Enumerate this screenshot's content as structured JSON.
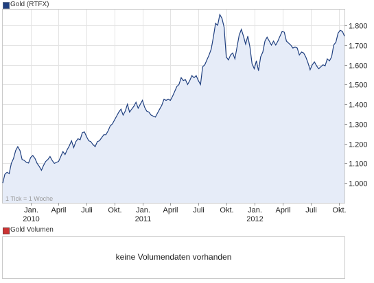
{
  "legend_price": {
    "label": "Gold (RTFX)",
    "color": "#1f3f7f"
  },
  "legend_volume": {
    "label": "Gold Volumen",
    "color": "#cc3333"
  },
  "volume_message": "keine Volumendaten vorhanden",
  "tick_note": "1 Tick = 1 Woche",
  "chart_data": {
    "type": "area",
    "title": "Gold (RTFX)",
    "xlabel": "",
    "ylabel": "",
    "ylim": [
      900,
      1880
    ],
    "yticks": [
      1000,
      1100,
      1200,
      1300,
      1400,
      1500,
      1600,
      1700,
      1800
    ],
    "ytick_labels": [
      "1.000",
      "1.100",
      "1.200",
      "1.300",
      "1.400",
      "1.500",
      "1.600",
      "1.700",
      "1.800"
    ],
    "xlim": [
      "2009-10-02",
      "2012-10-19"
    ],
    "xticks": [
      {
        "date": "2010-01-01",
        "label": "Jan.",
        "sub": "2010"
      },
      {
        "date": "2010-04-01",
        "label": "April",
        "sub": ""
      },
      {
        "date": "2010-07-01",
        "label": "Juli",
        "sub": ""
      },
      {
        "date": "2010-10-01",
        "label": "Okt.",
        "sub": ""
      },
      {
        "date": "2011-01-01",
        "label": "Jan.",
        "sub": "2011"
      },
      {
        "date": "2011-04-01",
        "label": "April",
        "sub": ""
      },
      {
        "date": "2011-07-01",
        "label": "Juli",
        "sub": ""
      },
      {
        "date": "2011-10-01",
        "label": "Okt.",
        "sub": ""
      },
      {
        "date": "2012-01-01",
        "label": "Jan.",
        "sub": "2012"
      },
      {
        "date": "2012-04-01",
        "label": "April",
        "sub": ""
      },
      {
        "date": "2012-07-01",
        "label": "Juli",
        "sub": ""
      },
      {
        "date": "2012-10-01",
        "label": "Okt.",
        "sub": ""
      }
    ],
    "grid": true,
    "series": [
      {
        "name": "Gold (RTFX)",
        "color": "#1f3f7f",
        "fill": "#e6ecf8",
        "points": [
          [
            "2009-10-02",
            1000
          ],
          [
            "2009-10-09",
            1045
          ],
          [
            "2009-10-16",
            1055
          ],
          [
            "2009-10-23",
            1048
          ],
          [
            "2009-10-30",
            1100
          ],
          [
            "2009-11-06",
            1125
          ],
          [
            "2009-11-13",
            1165
          ],
          [
            "2009-11-20",
            1185
          ],
          [
            "2009-11-27",
            1165
          ],
          [
            "2009-12-04",
            1120
          ],
          [
            "2009-12-11",
            1115
          ],
          [
            "2009-12-18",
            1105
          ],
          [
            "2009-12-25",
            1102
          ],
          [
            "2010-01-01",
            1130
          ],
          [
            "2010-01-08",
            1140
          ],
          [
            "2010-01-15",
            1125
          ],
          [
            "2010-01-22",
            1100
          ],
          [
            "2010-01-29",
            1085
          ],
          [
            "2010-02-05",
            1065
          ],
          [
            "2010-02-12",
            1090
          ],
          [
            "2010-02-19",
            1110
          ],
          [
            "2010-02-26",
            1120
          ],
          [
            "2010-03-05",
            1135
          ],
          [
            "2010-03-12",
            1115
          ],
          [
            "2010-03-19",
            1100
          ],
          [
            "2010-03-26",
            1105
          ],
          [
            "2010-04-02",
            1110
          ],
          [
            "2010-04-09",
            1135
          ],
          [
            "2010-04-16",
            1160
          ],
          [
            "2010-04-23",
            1145
          ],
          [
            "2010-04-30",
            1170
          ],
          [
            "2010-05-07",
            1190
          ],
          [
            "2010-05-14",
            1215
          ],
          [
            "2010-05-21",
            1180
          ],
          [
            "2010-05-28",
            1210
          ],
          [
            "2010-06-04",
            1225
          ],
          [
            "2010-06-11",
            1220
          ],
          [
            "2010-06-18",
            1255
          ],
          [
            "2010-06-25",
            1260
          ],
          [
            "2010-07-02",
            1235
          ],
          [
            "2010-07-09",
            1215
          ],
          [
            "2010-07-16",
            1210
          ],
          [
            "2010-07-23",
            1195
          ],
          [
            "2010-07-30",
            1185
          ],
          [
            "2010-08-06",
            1210
          ],
          [
            "2010-08-13",
            1215
          ],
          [
            "2010-08-20",
            1230
          ],
          [
            "2010-08-27",
            1245
          ],
          [
            "2010-09-03",
            1245
          ],
          [
            "2010-09-10",
            1265
          ],
          [
            "2010-09-17",
            1290
          ],
          [
            "2010-09-24",
            1300
          ],
          [
            "2010-10-01",
            1320
          ],
          [
            "2010-10-08",
            1340
          ],
          [
            "2010-10-15",
            1360
          ],
          [
            "2010-10-22",
            1375
          ],
          [
            "2010-10-29",
            1345
          ],
          [
            "2010-11-05",
            1365
          ],
          [
            "2010-11-12",
            1400
          ],
          [
            "2010-11-19",
            1360
          ],
          [
            "2010-11-26",
            1375
          ],
          [
            "2010-12-03",
            1390
          ],
          [
            "2010-12-10",
            1410
          ],
          [
            "2010-12-17",
            1380
          ],
          [
            "2010-12-24",
            1400
          ],
          [
            "2010-12-31",
            1420
          ],
          [
            "2011-01-07",
            1385
          ],
          [
            "2011-01-14",
            1365
          ],
          [
            "2011-01-21",
            1360
          ],
          [
            "2011-01-28",
            1345
          ],
          [
            "2011-02-04",
            1340
          ],
          [
            "2011-02-11",
            1335
          ],
          [
            "2011-02-18",
            1355
          ],
          [
            "2011-02-25",
            1375
          ],
          [
            "2011-03-04",
            1395
          ],
          [
            "2011-03-11",
            1425
          ],
          [
            "2011-03-18",
            1420
          ],
          [
            "2011-03-25",
            1425
          ],
          [
            "2011-04-01",
            1420
          ],
          [
            "2011-04-08",
            1440
          ],
          [
            "2011-04-15",
            1465
          ],
          [
            "2011-04-22",
            1490
          ],
          [
            "2011-04-29",
            1500
          ],
          [
            "2011-05-06",
            1535
          ],
          [
            "2011-05-13",
            1520
          ],
          [
            "2011-05-20",
            1525
          ],
          [
            "2011-05-27",
            1500
          ],
          [
            "2011-06-03",
            1520
          ],
          [
            "2011-06-10",
            1545
          ],
          [
            "2011-06-17",
            1535
          ],
          [
            "2011-06-24",
            1545
          ],
          [
            "2011-07-01",
            1520
          ],
          [
            "2011-07-08",
            1500
          ],
          [
            "2011-07-15",
            1590
          ],
          [
            "2011-07-22",
            1600
          ],
          [
            "2011-07-29",
            1625
          ],
          [
            "2011-08-05",
            1650
          ],
          [
            "2011-08-12",
            1680
          ],
          [
            "2011-08-19",
            1740
          ],
          [
            "2011-08-26",
            1810
          ],
          [
            "2011-09-02",
            1800
          ],
          [
            "2011-09-09",
            1855
          ],
          [
            "2011-09-16",
            1835
          ],
          [
            "2011-09-23",
            1790
          ],
          [
            "2011-09-30",
            1640
          ],
          [
            "2011-10-07",
            1625
          ],
          [
            "2011-10-14",
            1650
          ],
          [
            "2011-10-21",
            1660
          ],
          [
            "2011-10-28",
            1630
          ],
          [
            "2011-11-04",
            1690
          ],
          [
            "2011-11-11",
            1750
          ],
          [
            "2011-11-18",
            1780
          ],
          [
            "2011-11-25",
            1745
          ],
          [
            "2011-12-02",
            1705
          ],
          [
            "2011-12-09",
            1745
          ],
          [
            "2011-12-16",
            1690
          ],
          [
            "2011-12-23",
            1605
          ],
          [
            "2011-12-30",
            1580
          ],
          [
            "2012-01-06",
            1620
          ],
          [
            "2012-01-13",
            1570
          ],
          [
            "2012-01-20",
            1640
          ],
          [
            "2012-01-27",
            1665
          ],
          [
            "2012-02-03",
            1720
          ],
          [
            "2012-02-10",
            1740
          ],
          [
            "2012-02-17",
            1720
          ],
          [
            "2012-02-24",
            1700
          ],
          [
            "2012-03-02",
            1720
          ],
          [
            "2012-03-09",
            1700
          ],
          [
            "2012-03-16",
            1720
          ],
          [
            "2012-03-23",
            1745
          ],
          [
            "2012-03-30",
            1770
          ],
          [
            "2012-04-06",
            1765
          ],
          [
            "2012-04-13",
            1720
          ],
          [
            "2012-04-20",
            1710
          ],
          [
            "2012-04-27",
            1700
          ],
          [
            "2012-05-04",
            1685
          ],
          [
            "2012-05-11",
            1690
          ],
          [
            "2012-05-18",
            1685
          ],
          [
            "2012-05-25",
            1650
          ],
          [
            "2012-06-01",
            1665
          ],
          [
            "2012-06-08",
            1660
          ],
          [
            "2012-06-15",
            1640
          ],
          [
            "2012-06-22",
            1610
          ],
          [
            "2012-06-29",
            1575
          ],
          [
            "2012-07-06",
            1600
          ],
          [
            "2012-07-13",
            1615
          ],
          [
            "2012-07-20",
            1595
          ],
          [
            "2012-07-27",
            1580
          ],
          [
            "2012-08-03",
            1590
          ],
          [
            "2012-08-10",
            1600
          ],
          [
            "2012-08-17",
            1595
          ],
          [
            "2012-08-24",
            1630
          ],
          [
            "2012-08-31",
            1620
          ],
          [
            "2012-09-07",
            1640
          ],
          [
            "2012-09-14",
            1700
          ],
          [
            "2012-09-21",
            1715
          ],
          [
            "2012-09-28",
            1760
          ],
          [
            "2012-10-05",
            1775
          ],
          [
            "2012-10-12",
            1770
          ],
          [
            "2012-10-19",
            1745
          ]
        ]
      }
    ]
  }
}
